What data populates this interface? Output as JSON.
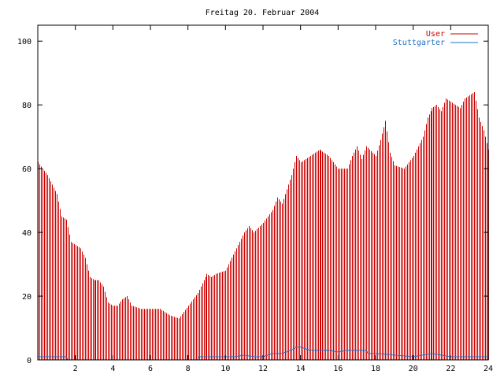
{
  "colors": {
    "user": "#cc0000",
    "stuttgarter": "#1f6fc9",
    "axis": "#000000",
    "background": "#ffffff"
  },
  "chart_data": {
    "type": "bar",
    "title": "Freitag 20. Februar 2004",
    "xlabel": "",
    "ylabel": "",
    "xlim": [
      0,
      24
    ],
    "ylim": [
      0,
      105
    ],
    "x_ticks": [
      2,
      4,
      6,
      8,
      10,
      12,
      14,
      16,
      18,
      20,
      22,
      24
    ],
    "y_ticks": [
      0,
      20,
      40,
      60,
      80,
      100
    ],
    "grid": false,
    "legend_position": "top-right",
    "series": [
      {
        "name": "User",
        "style": "impulses",
        "points": [
          [
            0.0,
            62
          ],
          [
            0.5,
            58
          ],
          [
            1.0,
            52
          ],
          [
            1.25,
            45
          ],
          [
            1.5,
            44
          ],
          [
            1.75,
            37
          ],
          [
            2.0,
            36
          ],
          [
            2.25,
            35
          ],
          [
            2.5,
            32
          ],
          [
            2.75,
            26
          ],
          [
            3.0,
            25
          ],
          [
            3.25,
            25
          ],
          [
            3.5,
            23
          ],
          [
            3.75,
            18
          ],
          [
            4.0,
            17
          ],
          [
            4.25,
            17
          ],
          [
            4.5,
            19
          ],
          [
            4.75,
            20
          ],
          [
            5.0,
            17
          ],
          [
            5.5,
            16
          ],
          [
            6.0,
            16
          ],
          [
            6.5,
            16
          ],
          [
            7.0,
            14
          ],
          [
            7.5,
            13
          ],
          [
            8.0,
            17
          ],
          [
            8.5,
            21
          ],
          [
            9.0,
            27
          ],
          [
            9.25,
            26
          ],
          [
            9.5,
            27
          ],
          [
            10.0,
            28
          ],
          [
            10.5,
            34
          ],
          [
            11.0,
            40
          ],
          [
            11.25,
            42
          ],
          [
            11.5,
            40
          ],
          [
            12.0,
            43
          ],
          [
            12.5,
            47
          ],
          [
            12.75,
            51
          ],
          [
            13.0,
            49
          ],
          [
            13.5,
            58
          ],
          [
            13.75,
            64
          ],
          [
            14.0,
            62
          ],
          [
            14.5,
            64
          ],
          [
            15.0,
            66
          ],
          [
            15.5,
            64
          ],
          [
            16.0,
            60
          ],
          [
            16.5,
            60
          ],
          [
            16.75,
            64
          ],
          [
            17.0,
            67
          ],
          [
            17.25,
            63
          ],
          [
            17.5,
            67
          ],
          [
            18.0,
            64
          ],
          [
            18.25,
            69
          ],
          [
            18.5,
            75
          ],
          [
            18.75,
            65
          ],
          [
            19.0,
            61
          ],
          [
            19.5,
            60
          ],
          [
            20.0,
            64
          ],
          [
            20.25,
            67
          ],
          [
            20.5,
            70
          ],
          [
            20.75,
            76
          ],
          [
            21.0,
            79
          ],
          [
            21.25,
            80
          ],
          [
            21.5,
            78
          ],
          [
            21.75,
            82
          ],
          [
            22.0,
            81
          ],
          [
            22.5,
            79
          ],
          [
            22.75,
            82
          ],
          [
            23.0,
            83
          ],
          [
            23.25,
            84
          ],
          [
            23.5,
            76
          ],
          [
            23.75,
            72
          ],
          [
            24.0,
            66
          ]
        ]
      },
      {
        "name": "Stuttgarter",
        "style": "line",
        "points": [
          [
            0.0,
            1
          ],
          [
            1.5,
            1
          ],
          [
            1.6,
            0
          ],
          [
            8.5,
            0
          ],
          [
            8.6,
            1
          ],
          [
            9.8,
            1
          ],
          [
            10.0,
            1
          ],
          [
            10.5,
            1
          ],
          [
            11.0,
            1.5
          ],
          [
            11.5,
            1
          ],
          [
            12.0,
            1
          ],
          [
            12.5,
            2
          ],
          [
            13.0,
            2
          ],
          [
            13.5,
            3
          ],
          [
            13.75,
            4
          ],
          [
            14.0,
            4
          ],
          [
            14.5,
            3
          ],
          [
            15.0,
            3
          ],
          [
            15.5,
            3
          ],
          [
            16.0,
            2.5
          ],
          [
            16.5,
            3
          ],
          [
            17.5,
            3
          ],
          [
            17.6,
            2
          ],
          [
            18.0,
            2
          ],
          [
            19.0,
            1.5
          ],
          [
            20.0,
            1
          ],
          [
            21.0,
            2
          ],
          [
            22.0,
            1
          ],
          [
            24.0,
            1
          ]
        ]
      }
    ]
  }
}
